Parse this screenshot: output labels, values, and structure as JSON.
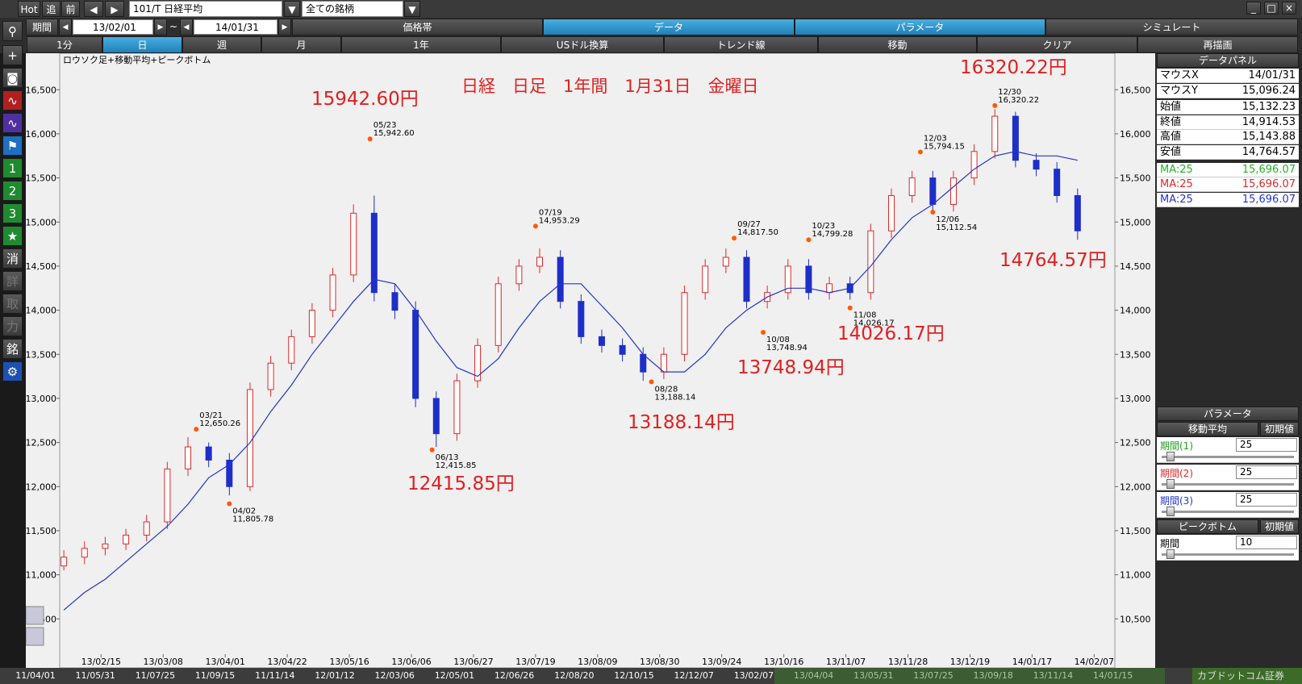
{
  "toolbar": {
    "hot": "Hot",
    "buttons": [
      "追",
      "前"
    ],
    "symbol": "101/T 日経平均",
    "filter": "全ての銘柄"
  },
  "period": {
    "label": "期間",
    "from": "13/02/01",
    "sep": "~",
    "to": "14/01/31"
  },
  "tabs": [
    "価格帯",
    "データ",
    "パラメータ",
    "シミュレート"
  ],
  "selected_tabs": [
    1,
    2
  ],
  "buttons": [
    "1分",
    "日",
    "週",
    "月",
    "1年",
    "USドル換算",
    "トレンド線",
    "移動",
    "クリア",
    "再描画"
  ],
  "selected_button": 1,
  "side_icons": [
    "1",
    "2",
    "3",
    "★",
    "消",
    "詳",
    "取",
    "力",
    "銘"
  ],
  "chart_data": {
    "type": "candlestick",
    "title": "日経　日足　1年間　1月31日　金曜日",
    "subtitle": "ロウソク足+移動平均+ピークボトム",
    "up_color": "#e02828",
    "down_color": "#1e2ec8",
    "ma_color": "#2434d0",
    "peak_color": "#ff5a00",
    "xlim": [
      -1,
      254
    ],
    "xticks": [
      {
        "value": 9,
        "label": "13/02/15"
      },
      {
        "value": 24,
        "label": "13/03/08"
      },
      {
        "value": 39,
        "label": "13/04/01"
      },
      {
        "value": 54,
        "label": "13/04/22"
      },
      {
        "value": 69,
        "label": "13/05/16"
      },
      {
        "value": 84,
        "label": "13/06/06"
      },
      {
        "value": 99,
        "label": "13/06/27"
      },
      {
        "value": 114,
        "label": "13/07/19"
      },
      {
        "value": 129,
        "label": "13/08/09"
      },
      {
        "value": 144,
        "label": "13/08/30"
      },
      {
        "value": 159,
        "label": "13/09/24"
      },
      {
        "value": 174,
        "label": "13/10/16"
      },
      {
        "value": 189,
        "label": "13/11/07"
      },
      {
        "value": 204,
        "label": "13/11/28"
      },
      {
        "value": 219,
        "label": "13/12/19"
      },
      {
        "value": 234,
        "label": "14/01/17"
      },
      {
        "value": 249,
        "label": "14/02/07"
      }
    ],
    "ylim": [
      10100,
      16850
    ],
    "yticks": [
      {
        "value": 10500,
        "label": "10,500"
      },
      {
        "value": 11000,
        "label": "11,000"
      },
      {
        "value": 11500,
        "label": "11,500"
      },
      {
        "value": 12000,
        "label": "12,000"
      },
      {
        "value": 12500,
        "label": "12,500"
      },
      {
        "value": 13000,
        "label": "13,000"
      },
      {
        "value": 13500,
        "label": "13,500"
      },
      {
        "value": 14000,
        "label": "14,000"
      },
      {
        "value": 14500,
        "label": "14,500"
      },
      {
        "value": 15000,
        "label": "15,000"
      },
      {
        "value": 15500,
        "label": "15,500"
      },
      {
        "value": 16000,
        "label": "16,000"
      },
      {
        "value": 16500,
        "label": "16,500"
      }
    ],
    "x": [
      0,
      5,
      10,
      15,
      20,
      25,
      30,
      35,
      40,
      45,
      50,
      55,
      60,
      65,
      70,
      75,
      80,
      85,
      90,
      95,
      100,
      105,
      110,
      115,
      120,
      125,
      130,
      135,
      140,
      145,
      150,
      155,
      160,
      165,
      170,
      175,
      180,
      185,
      190,
      195,
      200,
      205,
      210,
      215,
      220,
      225,
      230,
      235,
      240,
      245
    ],
    "open": [
      11100,
      11200,
      11300,
      11350,
      11450,
      11600,
      12200,
      12450,
      12300,
      12000,
      13100,
      13400,
      13700,
      14000,
      14400,
      15100,
      14200,
      14000,
      13000,
      12600,
      13200,
      13600,
      14300,
      14500,
      14600,
      14100,
      13700,
      13600,
      13500,
      13300,
      13500,
      14200,
      14500,
      14600,
      14100,
      14200,
      14500,
      14200,
      14300,
      14200,
      14900,
      15300,
      15500,
      15200,
      15500,
      15800,
      16200,
      15700,
      15600,
      15300
    ],
    "high": [
      11280,
      11380,
      11430,
      11520,
      11680,
      12280,
      12560,
      12500,
      12380,
      13180,
      13480,
      13780,
      14080,
      14480,
      15200,
      15300,
      14300,
      14100,
      13080,
      13280,
      13680,
      14380,
      14580,
      14700,
      14680,
      14180,
      13780,
      13680,
      13580,
      13580,
      14280,
      14580,
      14700,
      14680,
      14280,
      14580,
      14580,
      14380,
      14380,
      14980,
      15380,
      15580,
      15580,
      15580,
      15880,
      16280,
      16250,
      15780,
      15680,
      15380
    ],
    "low": [
      11050,
      11120,
      11220,
      11280,
      11380,
      11520,
      12120,
      12220,
      11900,
      11950,
      13020,
      13320,
      13620,
      13920,
      14320,
      14100,
      13900,
      12900,
      12450,
      12520,
      13120,
      13520,
      14220,
      14420,
      14020,
      13620,
      13520,
      13420,
      13200,
      13220,
      13420,
      14120,
      14420,
      14020,
      14020,
      14120,
      14120,
      14120,
      14120,
      14120,
      14820,
      15220,
      15120,
      15120,
      15420,
      15720,
      15620,
      15520,
      15220,
      14800
    ],
    "close": [
      11200,
      11300,
      11350,
      11450,
      11600,
      12200,
      12450,
      12300,
      12000,
      13100,
      13400,
      13700,
      14000,
      14400,
      15100,
      14200,
      14000,
      13000,
      12600,
      13200,
      13600,
      14300,
      14500,
      14600,
      14100,
      13700,
      13600,
      13500,
      13300,
      13500,
      14200,
      14500,
      14600,
      14100,
      14200,
      14500,
      14200,
      14300,
      14200,
      14900,
      15300,
      15500,
      15200,
      15500,
      15800,
      16200,
      15700,
      15600,
      15300,
      14900
    ],
    "ma": [
      10600,
      10800,
      10950,
      11150,
      11350,
      11550,
      11800,
      12100,
      12250,
      12500,
      12850,
      13150,
      13500,
      13800,
      14100,
      14350,
      14300,
      14000,
      13650,
      13350,
      13250,
      13450,
      13800,
      14100,
      14300,
      14300,
      14050,
      13800,
      13500,
      13300,
      13300,
      13500,
      13800,
      14000,
      14150,
      14250,
      14250,
      14200,
      14250,
      14500,
      14800,
      15050,
      15200,
      15400,
      15600,
      15750,
      15800,
      15750,
      15750,
      15700
    ],
    "peaks": [
      {
        "date": "03/21",
        "x": 32,
        "value": 12650.26,
        "value_label": "12,650.26",
        "kind": "peak"
      },
      {
        "date": "04/02",
        "x": 40,
        "value": 11805.78,
        "value_label": "11,805.78",
        "kind": "bottom"
      },
      {
        "date": "05/23",
        "x": 74,
        "value": 15942.6,
        "value_label": "15,942.60",
        "kind": "peak"
      },
      {
        "date": "06/13",
        "x": 89,
        "value": 12415.85,
        "value_label": "12,415.85",
        "kind": "bottom"
      },
      {
        "date": "07/19",
        "x": 114,
        "value": 14953.29,
        "value_label": "14,953.29",
        "kind": "peak"
      },
      {
        "date": "08/28",
        "x": 142,
        "value": 13188.14,
        "value_label": "13,188.14",
        "kind": "bottom"
      },
      {
        "date": "09/27",
        "x": 162,
        "value": 14817.5,
        "value_label": "14,817.50",
        "kind": "peak"
      },
      {
        "date": "10/08",
        "x": 169,
        "value": 13748.94,
        "value_label": "13,748.94",
        "kind": "bottom"
      },
      {
        "date": "10/23",
        "x": 180,
        "value": 14799.28,
        "value_label": "14,799.28",
        "kind": "peak"
      },
      {
        "date": "11/08",
        "x": 190,
        "value": 14026.17,
        "value_label": "14,026.17",
        "kind": "bottom"
      },
      {
        "date": "12/03",
        "x": 207,
        "value": 15794.15,
        "value_label": "15,794.15",
        "kind": "peak"
      },
      {
        "date": "12/06",
        "x": 210,
        "value": 15112.54,
        "value_label": "15,112.54",
        "kind": "bottom"
      },
      {
        "date": "12/30",
        "x": 225,
        "value": 16320.22,
        "value_label": "16,320.22",
        "kind": "peak"
      }
    ],
    "annotations": [
      "15942.60円",
      "16320.22円",
      "12415.85円",
      "13188.14円",
      "13748.94円",
      "14026.17円",
      "14764.57円"
    ]
  },
  "data_panel": {
    "title": "データパネル",
    "rows": [
      {
        "label": "マウスX",
        "value": "14/01/31"
      },
      {
        "label": "マウスY",
        "value": "15,096.24"
      },
      {
        "label": "始値",
        "value": "15,132.23"
      },
      {
        "label": "終値",
        "value": "14,914.53"
      },
      {
        "label": "高値",
        "value": "15,143.88"
      },
      {
        "label": "安値",
        "value": "14,764.57"
      },
      {
        "label": "MA:25",
        "value": "15,696.07",
        "color": "#22b422"
      },
      {
        "label": "MA:25",
        "value": "15,696.07",
        "color": "#e02828"
      },
      {
        "label": "MA:25",
        "value": "15,696.07",
        "color": "#2434d0"
      }
    ]
  },
  "param_panel": {
    "title": "パラメータ",
    "sections": [
      {
        "title": "移動平均",
        "reset": "初期値",
        "rows": [
          {
            "label": "期間(1)",
            "value": "25",
            "color": "#22a022"
          },
          {
            "label": "期間(2)",
            "value": "25",
            "color": "#e02828"
          },
          {
            "label": "期間(3)",
            "value": "25",
            "color": "#2434d0"
          }
        ]
      },
      {
        "title": "ピークボトム",
        "reset": "初期値",
        "rows": [
          {
            "label": "期間",
            "value": "10",
            "color": "#000000"
          }
        ]
      }
    ]
  },
  "timeline": [
    "11/04/01",
    "11/05/31",
    "11/07/25",
    "11/09/15",
    "11/11/14",
    "12/01/12",
    "12/03/06",
    "12/05/01",
    "12/06/26",
    "12/08/20",
    "12/10/15",
    "12/12/07",
    "13/02/07",
    "13/04/04",
    "13/05/31",
    "13/07/25",
    "13/09/18",
    "13/11/14",
    "14/01/15"
  ],
  "logo": "カブドットコム証券"
}
